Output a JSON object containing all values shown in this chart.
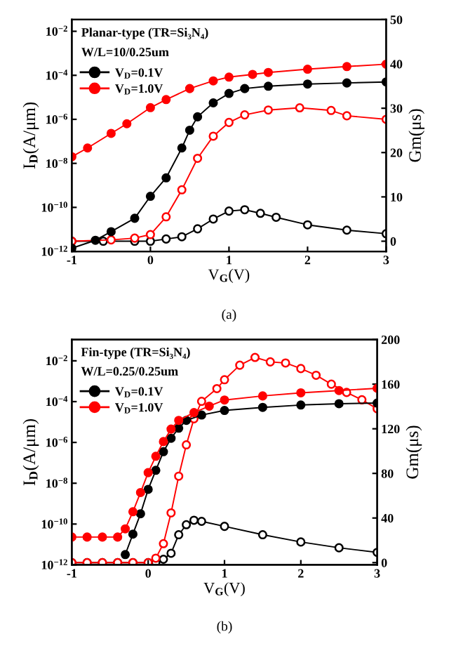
{
  "chart_data": [
    {
      "type": "line",
      "xlabel": "V$_{G}$(V)",
      "ylabel": "I$_{D}$(A/μm)",
      "y2label": "Gm(μs)",
      "annotations": [
        "Planar-type (TR=Si₃N₄)",
        "W/L=10/0.25um",
        "(a)"
      ],
      "log": "y",
      "xlim": [
        -1,
        3
      ],
      "xticks": [
        -1,
        0,
        1,
        2,
        3
      ],
      "ylim": [
        1e-12,
        0.034
      ],
      "yticks": [
        {
          "value": 1e-12,
          "label": "10$^{−12}$"
        },
        {
          "value": 1e-10,
          "label": "10$^{−10}$"
        },
        {
          "value": 1e-08,
          "label": "10$^{−8}$"
        },
        {
          "value": 1e-06,
          "label": "10$^{−6}$"
        },
        {
          "value": 0.0001,
          "label": "10$^{−4}$"
        },
        {
          "value": 0.01,
          "label": "10$^{−2}$"
        }
      ],
      "y2lim": [
        -2.3,
        50
      ],
      "y2ticks": [
        0,
        10,
        20,
        30,
        40,
        50
      ],
      "marker": "circle",
      "line_style": "solid",
      "legend": "top left",
      "grid": false,
      "series": [
        {
          "name": "V$_{D}$=0.1V",
          "color": "#000000",
          "x": [
            -1,
            -0.7,
            -0.5,
            -0.2,
            0,
            0.2,
            0.4,
            0.5,
            0.6,
            0.8,
            1.0,
            1.2,
            1.5,
            2,
            2.5,
            3
          ],
          "values": [
            1.4e-12,
            3.2e-12,
            7.9e-12,
            3.2e-11,
            3.2e-10,
            2.2e-09,
            5e-08,
            3.2e-07,
            1.3e-06,
            5.6e-06,
            1.5e-05,
            2.5e-05,
            3.2e-05,
            4e-05,
            4.5e-05,
            5e-05
          ]
        },
        {
          "name": "V$_{D}$=1.0V",
          "color": "#ff0000",
          "x": [
            -1,
            -0.8,
            -0.5,
            -0.3,
            0,
            0.2,
            0.5,
            0.8,
            1,
            1.3,
            1.5,
            2,
            2.5,
            3
          ],
          "values": [
            2e-08,
            5e-08,
            2.3e-07,
            6.3e-07,
            3.4e-06,
            7.9e-06,
            2.5e-05,
            5.6e-05,
            8.3e-05,
            0.00011,
            0.000135,
            0.00019,
            0.00025,
            0.00032
          ]
        },
        {
          "color": "#000000",
          "axis": "y2",
          "x": [
            -1,
            -0.6,
            -0.2,
            0,
            0.2,
            0.4,
            0.6,
            0.8,
            1.0,
            1.2,
            1.4,
            1.6,
            2.0,
            2.5,
            3
          ],
          "values": [
            0,
            0,
            0,
            0,
            0.5,
            1,
            2.8,
            5,
            6.8,
            7.1,
            6.3,
            5.4,
            3.7,
            2.5,
            1.7
          ]
        },
        {
          "color": "#ff0000",
          "axis": "y2",
          "x": [
            -1,
            -0.5,
            -0.2,
            0,
            0.2,
            0.4,
            0.6,
            0.8,
            1.0,
            1.2,
            1.5,
            1.9,
            2.3,
            2.5,
            3
          ],
          "values": [
            0,
            0.3,
            0.7,
            1.5,
            5.5,
            11.6,
            18.7,
            23.7,
            26.8,
            28.5,
            29.6,
            30.1,
            29.5,
            28.3,
            27.5
          ]
        }
      ]
    },
    {
      "type": "line",
      "xlabel": "V$_{G}$(V)",
      "ylabel": "I$_{D}$(A/μm)",
      "y2label": "Gm(μs)",
      "annotations": [
        "Fin-type (TR=Si₃N₄)",
        "W/L=0.25/0.25um",
        "(b)"
      ],
      "log": "y",
      "xlim": [
        -1,
        3
      ],
      "xticks": [
        -1,
        0,
        1,
        2,
        3
      ],
      "ylim": [
        1e-12,
        0.11
      ],
      "yticks": [
        {
          "value": 1e-12,
          "label": "10$^{−12}$"
        },
        {
          "value": 1e-10,
          "label": "10$^{−10}$"
        },
        {
          "value": 1e-08,
          "label": "10$^{−8}$"
        },
        {
          "value": 1e-06,
          "label": "10$^{−6}$"
        },
        {
          "value": 0.0001,
          "label": "10$^{−4}$"
        },
        {
          "value": 0.01,
          "label": "10$^{−2}$"
        }
      ],
      "y2lim": [
        -2,
        200
      ],
      "y2ticks": [
        0,
        40,
        80,
        120,
        160,
        200
      ],
      "marker": "circle",
      "line_style": "solid",
      "legend": "top left",
      "grid": false,
      "series": [
        {
          "name": "V$_{D}$=0.1V",
          "color": "#000000",
          "x": [
            -0.3,
            -0.2,
            -0.1,
            0,
            0.1,
            0.2,
            0.3,
            0.4,
            0.5,
            0.7,
            1.0,
            1.5,
            2,
            2.5,
            3
          ],
          "values": [
            3.2e-12,
            3.2e-11,
            3.2e-10,
            5e-09,
            4.3e-08,
            3.5e-07,
            1.6e-06,
            5e-06,
            1.2e-05,
            2.2e-05,
            3.7e-05,
            5.2e-05,
            6.8e-05,
            7.9e-05,
            8.5e-05
          ]
        },
        {
          "name": "V$_{D}$=1.0V",
          "color": "#ff0000",
          "x": [
            -1,
            -0.8,
            -0.6,
            -0.4,
            -0.3,
            -0.2,
            -0.1,
            0,
            0.1,
            0.2,
            0.3,
            0.4,
            0.6,
            0.8,
            1.0,
            1.5,
            2,
            2.5,
            3
          ],
          "values": [
            2.3e-11,
            2.3e-11,
            2.3e-11,
            2.3e-11,
            5.8e-11,
            4e-10,
            3.5e-09,
            3.3e-08,
            2.1e-07,
            1.1e-06,
            4.5e-06,
            1.2e-05,
            2.9e-05,
            6e-05,
            0.00012,
            0.00019,
            0.00027,
            0.00035,
            0.00045
          ]
        },
        {
          "color": "#000000",
          "axis": "y2",
          "x": [
            -1,
            -0.8,
            -0.6,
            -0.4,
            -0.2,
            0,
            0.1,
            0.2,
            0.3,
            0.4,
            0.5,
            0.6,
            0.7,
            1.0,
            1.5,
            2.0,
            2.5,
            3
          ],
          "values": [
            0,
            0,
            0,
            0,
            0,
            0,
            0,
            3,
            8.4,
            25,
            34,
            38,
            37,
            32.5,
            25,
            18.5,
            13.3,
            9.2
          ]
        },
        {
          "color": "#ff0000",
          "axis": "y2",
          "x": [
            -1,
            -0.8,
            -0.6,
            -0.4,
            -0.2,
            0,
            0.1,
            0.2,
            0.3,
            0.4,
            0.5,
            0.6,
            0.7,
            0.9,
            1.0,
            1.2,
            1.4,
            1.6,
            1.8,
            2.0,
            2.2,
            2.4,
            2.6,
            2.8,
            3
          ],
          "values": [
            0,
            0,
            0,
            0,
            0,
            0,
            4,
            17,
            44.6,
            77.5,
            105.6,
            129,
            144.6,
            156,
            164,
            177,
            184,
            180,
            179,
            174,
            168,
            160,
            152.6,
            146,
            138
          ]
        }
      ]
    }
  ]
}
